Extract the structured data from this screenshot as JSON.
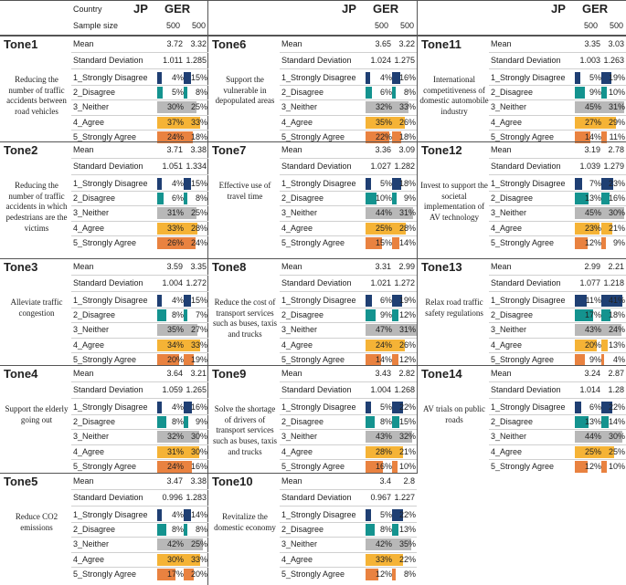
{
  "header": {
    "country_label": "Country",
    "sample_label": "Sample size",
    "jp_label": "JP",
    "ger_label": "GER",
    "jp_n": "500",
    "ger_n": "500"
  },
  "stat_labels": {
    "mean": "Mean",
    "sd": "Standard Deviation"
  },
  "response_labels": [
    "1_Strongly Disagree",
    "2_Disagree",
    "3_Neither",
    "4_Agree",
    "5_Strongly Agree"
  ],
  "colors": {
    "r1": "#1f3f73",
    "r2": "#14938f",
    "r3": "#b8b8b8",
    "r4": "#f5b336",
    "r5": "#e98240"
  },
  "tones": [
    {
      "title": "Tone1",
      "desc": "Reducing the number of traffic accidents between road vehicles",
      "jp_mean": "3.72",
      "ger_mean": "3.32",
      "jp_sd": "1.011",
      "ger_sd": "1.285",
      "jp": [
        4,
        5,
        30,
        37,
        24
      ],
      "ger": [
        15,
        8,
        25,
        33,
        18
      ],
      "jp_txt": [
        "4%",
        "5%",
        "30%",
        "37%",
        "24%"
      ],
      "ger_txt": [
        "15%",
        "8%",
        "25%",
        "33%",
        "18%"
      ]
    },
    {
      "title": "Tone2",
      "desc": "Reducing the number of traffic accidents in which pedestrians are the victims",
      "jp_mean": "3.71",
      "ger_mean": "3.38",
      "jp_sd": "1.051",
      "ger_sd": "1.334",
      "jp": [
        4,
        6,
        31,
        33,
        26
      ],
      "ger": [
        15,
        8,
        25,
        28,
        24
      ],
      "jp_txt": [
        "4%",
        "6%",
        "31%",
        "33%",
        "26%"
      ],
      "ger_txt": [
        "15%",
        "8%",
        "25%",
        "28%",
        "24%"
      ]
    },
    {
      "title": "Tone3",
      "desc": "Alleviate traffic congestion",
      "jp_mean": "3.59",
      "ger_mean": "3.35",
      "jp_sd": "1.004",
      "ger_sd": "1.272",
      "jp": [
        4,
        8,
        35,
        34,
        20
      ],
      "ger": [
        15,
        7,
        27,
        33,
        19
      ],
      "jp_txt": [
        "4%",
        "8%",
        "35%",
        "34%",
        "20%"
      ],
      "ger_txt": [
        "15%",
        "7%",
        "27%",
        "33%",
        "19%"
      ]
    },
    {
      "title": "Tone4",
      "desc": "Support the elderly going out",
      "jp_mean": "3.64",
      "ger_mean": "3.21",
      "jp_sd": "1.059",
      "ger_sd": "1.265",
      "jp": [
        4,
        8,
        32,
        31,
        24
      ],
      "ger": [
        16,
        9,
        30,
        30,
        16
      ],
      "jp_txt": [
        "4%",
        "8%",
        "32%",
        "31%",
        "24%"
      ],
      "ger_txt": [
        "16%",
        "9%",
        "30%",
        "30%",
        "16%"
      ]
    },
    {
      "title": "Tone5",
      "desc": "Reduce CO2 emissions",
      "jp_mean": "3.47",
      "ger_mean": "3.38",
      "jp_sd": "0.996",
      "ger_sd": "1.283",
      "jp": [
        4,
        8,
        42,
        30,
        17
      ],
      "ger": [
        14,
        8,
        25,
        33,
        20
      ],
      "jp_txt": [
        "4%",
        "8%",
        "42%",
        "30%",
        "17%"
      ],
      "ger_txt": [
        "14%",
        "8%",
        "25%",
        "33%",
        "20%"
      ]
    },
    {
      "title": "Tone6",
      "desc": "Support the vulnerable in depopulated areas",
      "jp_mean": "3.65",
      "ger_mean": "3.22",
      "jp_sd": "1.024",
      "ger_sd": "1.275",
      "jp": [
        4,
        6,
        32,
        35,
        22
      ],
      "ger": [
        16,
        8,
        33,
        26,
        18
      ],
      "jp_txt": [
        "4%",
        "6%",
        "32%",
        "35%",
        "22%"
      ],
      "ger_txt": [
        "16%",
        "8%",
        "33%",
        "26%",
        "18%"
      ]
    },
    {
      "title": "Tone7",
      "desc": "Effective use of travel time",
      "jp_mean": "3.36",
      "ger_mean": "3.09",
      "jp_sd": "1.027",
      "ger_sd": "1.282",
      "jp": [
        5,
        10,
        44,
        25,
        15
      ],
      "ger": [
        18,
        9,
        31,
        28,
        14
      ],
      "jp_txt": [
        "5%",
        "10%",
        "44%",
        "25%",
        "15%"
      ],
      "ger_txt": [
        "18%",
        "9%",
        "31%",
        "28%",
        "14%"
      ]
    },
    {
      "title": "Tone8",
      "desc": "Reduce the cost of transport services such as buses, taxis and trucks",
      "jp_mean": "3.31",
      "ger_mean": "2.99",
      "jp_sd": "1.021",
      "ger_sd": "1.272",
      "jp": [
        6,
        9,
        47,
        24,
        14
      ],
      "ger": [
        19,
        12,
        31,
        26,
        12
      ],
      "jp_txt": [
        "6%",
        "9%",
        "47%",
        "24%",
        "14%"
      ],
      "ger_txt": [
        "19%",
        "12%",
        "31%",
        "26%",
        "12%"
      ]
    },
    {
      "title": "Tone9",
      "desc": "Solve the shortage of drivers of transport services such as buses, taxis and trucks",
      "jp_mean": "3.43",
      "ger_mean": "2.82",
      "jp_sd": "1.004",
      "ger_sd": "1.268",
      "jp": [
        5,
        8,
        43,
        28,
        16
      ],
      "ger": [
        22,
        15,
        32,
        21,
        10
      ],
      "jp_txt": [
        "5%",
        "8%",
        "43%",
        "28%",
        "16%"
      ],
      "ger_txt": [
        "22%",
        "15%",
        "32%",
        "21%",
        "10%"
      ]
    },
    {
      "title": "Tone10",
      "desc": "Revitalize the domestic economy",
      "jp_mean": "3.4",
      "ger_mean": "2.8",
      "jp_sd": "0.967",
      "ger_sd": "1.227",
      "jp": [
        5,
        8,
        42,
        33,
        12
      ],
      "ger": [
        22,
        13,
        35,
        22,
        8
      ],
      "jp_txt": [
        "5%",
        "8%",
        "42%",
        "33%",
        "12%"
      ],
      "ger_txt": [
        "22%",
        "13%",
        "35%",
        "22%",
        "8%"
      ]
    },
    {
      "title": "Tone11",
      "desc": "International competitiveness of domestic automobile industry",
      "jp_mean": "3.35",
      "ger_mean": "3.03",
      "jp_sd": "1.003",
      "ger_sd": "1.263",
      "jp": [
        5,
        9,
        45,
        27,
        14
      ],
      "ger": [
        19,
        10,
        31,
        29,
        11
      ],
      "jp_txt": [
        "5%",
        "9%",
        "45%",
        "27%",
        "14%"
      ],
      "ger_txt": [
        "19%",
        "10%",
        "31%",
        "29%",
        "11%"
      ]
    },
    {
      "title": "Tone12",
      "desc": "Invest to support the societal implementation of AV technology",
      "jp_mean": "3.19",
      "ger_mean": "2.78",
      "jp_sd": "1.039",
      "ger_sd": "1.279",
      "jp": [
        7,
        13,
        45,
        23,
        12
      ],
      "ger": [
        23,
        16,
        30,
        21,
        9
      ],
      "jp_txt": [
        "7%",
        "13%",
        "45%",
        "23%",
        "12%"
      ],
      "ger_txt": [
        "23%",
        "16%",
        "30%",
        "21%",
        "9%"
      ]
    },
    {
      "title": "Tone13",
      "desc": "Relax road traffic safety regulations",
      "jp_mean": "2.99",
      "ger_mean": "2.21",
      "jp_sd": "1.077",
      "ger_sd": "1.218",
      "jp": [
        11,
        17,
        43,
        20,
        9
      ],
      "ger": [
        41,
        18,
        24,
        13,
        4
      ],
      "jp_txt": [
        "11%",
        "17%",
        "43%",
        "20%",
        "9%"
      ],
      "ger_txt": [
        "41%",
        "18%",
        "24%",
        "13%",
        "4%"
      ]
    },
    {
      "title": "Tone14",
      "desc": "AV trials on public roads",
      "jp_mean": "3.24",
      "ger_mean": "2.87",
      "jp_sd": "1.014",
      "ger_sd": "1.28",
      "jp": [
        6,
        13,
        44,
        25,
        12
      ],
      "ger": [
        22,
        14,
        30,
        25,
        10
      ],
      "jp_txt": [
        "6%",
        "13%",
        "44%",
        "25%",
        "12%"
      ],
      "ger_txt": [
        "22%",
        "14%",
        "30%",
        "25%",
        "10%"
      ]
    }
  ]
}
